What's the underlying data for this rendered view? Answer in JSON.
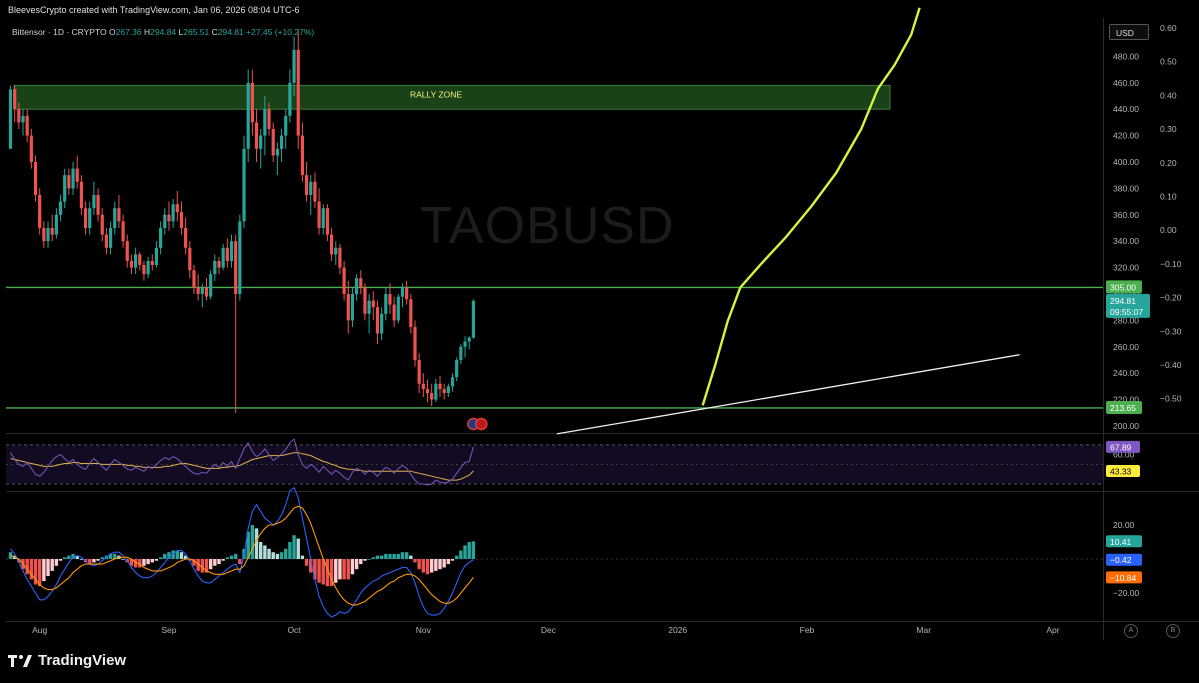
{
  "header": {
    "attribution": "BleevesCrypto created with TradingView.com, Jan 06, 2026 08:04 UTC-6"
  },
  "legend": {
    "symbol": "Bittensor · 1D · CRYPTO",
    "o_label": "O",
    "o_value": "267.36",
    "h_label": "H",
    "h_value": "294.84",
    "l_label": "L",
    "l_value": "265.51",
    "c_label": "C",
    "c_value": "294.81",
    "change": "+27.45 (+10.27%)"
  },
  "currency_button": "USD",
  "watermark": "TAOBUSD",
  "footer": {
    "brand": "TradingView"
  },
  "scale_buttons": {
    "auto": "A",
    "log": "B"
  },
  "colors": {
    "up": "#26a69a",
    "down": "#ef5350",
    "hline": "#4caf50",
    "rally_zone": "#1d4d1d",
    "curve": "#d4f53a",
    "rsi": "#7e57c2",
    "rsi_ma": "#e0b04d",
    "macd": "#2962ff",
    "signal": "#ff9800"
  },
  "chart_data": {
    "type": "candlestick",
    "symbol": "TAOBUSD",
    "interval": "1D",
    "ylim": [
      195,
      500
    ],
    "right_axis_ticks": [
      "480.00",
      "460.00",
      "440.00",
      "420.00",
      "400.00",
      "380.00",
      "360.00",
      "340.00",
      "320.00",
      "300.00",
      "280.00",
      "260.00",
      "240.00",
      "220.00",
      "200.00"
    ],
    "left_axis2_ticks": [
      "0.60",
      "0.50",
      "0.40",
      "0.30",
      "0.20",
      "0.10",
      "0.00",
      "−0.10",
      "−0.20",
      "−0.30",
      "−0.40",
      "−0.50"
    ],
    "x_ticks": [
      "Aug",
      "Sep",
      "Oct",
      "Nov",
      "Dec",
      "2026",
      "Feb",
      "Mar",
      "Apr"
    ],
    "price_labels": {
      "resistance": "305.00",
      "last": "294.81",
      "countdown": "09:55:07",
      "support": "213.65"
    },
    "horizontal_levels": [
      305.0,
      213.65
    ],
    "rally_zone": {
      "label": "RALLY ZONE",
      "low": 440,
      "high": 458
    },
    "trendline": {
      "from": [
        "2025-12-03",
        194
      ],
      "to": [
        "2026-03-24",
        254
      ]
    },
    "candles": {
      "start": "2025-07-25",
      "ohlc": [
        [
          410,
          458,
          410,
          455
        ],
        [
          455,
          458,
          430,
          440
        ],
        [
          440,
          445,
          425,
          430
        ],
        [
          430,
          440,
          420,
          435
        ],
        [
          435,
          440,
          415,
          420
        ],
        [
          420,
          425,
          395,
          400
        ],
        [
          400,
          405,
          370,
          375
        ],
        [
          375,
          380,
          345,
          350
        ],
        [
          350,
          355,
          335,
          340
        ],
        [
          340,
          355,
          335,
          350
        ],
        [
          350,
          360,
          340,
          345
        ],
        [
          345,
          365,
          342,
          360
        ],
        [
          360,
          375,
          355,
          370
        ],
        [
          370,
          395,
          365,
          390
        ],
        [
          390,
          395,
          375,
          380
        ],
        [
          380,
          400,
          375,
          395
        ],
        [
          395,
          405,
          380,
          385
        ],
        [
          385,
          390,
          360,
          365
        ],
        [
          365,
          370,
          345,
          350
        ],
        [
          350,
          370,
          345,
          365
        ],
        [
          365,
          385,
          360,
          375
        ],
        [
          375,
          380,
          355,
          360
        ],
        [
          360,
          365,
          340,
          345
        ],
        [
          345,
          350,
          330,
          335
        ],
        [
          335,
          355,
          330,
          350
        ],
        [
          350,
          370,
          345,
          365
        ],
        [
          365,
          375,
          350,
          355
        ],
        [
          355,
          360,
          335,
          340
        ],
        [
          340,
          345,
          320,
          325
        ],
        [
          325,
          330,
          315,
          320
        ],
        [
          320,
          335,
          315,
          330
        ],
        [
          330,
          332,
          318,
          322
        ],
        [
          322,
          325,
          310,
          315
        ],
        [
          315,
          328,
          312,
          325
        ],
        [
          325,
          330,
          318,
          322
        ],
        [
          322,
          340,
          320,
          335
        ],
        [
          335,
          355,
          330,
          350
        ],
        [
          350,
          365,
          345,
          360
        ],
        [
          360,
          370,
          348,
          355
        ],
        [
          355,
          372,
          350,
          368
        ],
        [
          368,
          378,
          355,
          362
        ],
        [
          362,
          370,
          345,
          350
        ],
        [
          350,
          358,
          330,
          335
        ],
        [
          335,
          340,
          312,
          318
        ],
        [
          318,
          322,
          300,
          305
        ],
        [
          305,
          315,
          295,
          300
        ],
        [
          300,
          308,
          290,
          305
        ],
        [
          305,
          312,
          295,
          298
        ],
        [
          298,
          318,
          296,
          315
        ],
        [
          315,
          330,
          310,
          325
        ],
        [
          325,
          328,
          315,
          320
        ],
        [
          320,
          338,
          318,
          335
        ],
        [
          335,
          342,
          320,
          325
        ],
        [
          325,
          345,
          320,
          340
        ],
        [
          340,
          345,
          210,
          300
        ],
        [
          300,
          360,
          295,
          355
        ],
        [
          355,
          420,
          350,
          410
        ],
        [
          410,
          470,
          400,
          460
        ],
        [
          460,
          470,
          420,
          430
        ],
        [
          430,
          440,
          400,
          410
        ],
        [
          410,
          425,
          395,
          420
        ],
        [
          420,
          450,
          405,
          440
        ],
        [
          440,
          445,
          420,
          425
        ],
        [
          425,
          430,
          400,
          405
        ],
        [
          405,
          415,
          390,
          410
        ],
        [
          410,
          425,
          400,
          420
        ],
        [
          420,
          440,
          410,
          435
        ],
        [
          435,
          470,
          430,
          460
        ],
        [
          460,
          495,
          450,
          485
        ],
        [
          485,
          500,
          410,
          420
        ],
        [
          420,
          430,
          385,
          390
        ],
        [
          390,
          400,
          370,
          375
        ],
        [
          375,
          390,
          360,
          385
        ],
        [
          385,
          392,
          365,
          370
        ],
        [
          370,
          380,
          345,
          350
        ],
        [
          350,
          368,
          345,
          365
        ],
        [
          365,
          368,
          340,
          345
        ],
        [
          345,
          350,
          325,
          330
        ],
        [
          330,
          340,
          322,
          335
        ],
        [
          335,
          338,
          315,
          320
        ],
        [
          320,
          325,
          295,
          300
        ],
        [
          300,
          310,
          270,
          280
        ],
        [
          280,
          305,
          275,
          300
        ],
        [
          300,
          315,
          295,
          312
        ],
        [
          312,
          318,
          300,
          305
        ],
        [
          305,
          308,
          280,
          285
        ],
        [
          285,
          300,
          270,
          295
        ],
        [
          295,
          302,
          280,
          290
        ],
        [
          290,
          295,
          262,
          270
        ],
        [
          270,
          290,
          265,
          285
        ],
        [
          285,
          305,
          280,
          300
        ],
        [
          300,
          308,
          285,
          292
        ],
        [
          292,
          298,
          275,
          280
        ],
        [
          280,
          300,
          278,
          298
        ],
        [
          298,
          308,
          290,
          305
        ],
        [
          305,
          310,
          292,
          296
        ],
        [
          296,
          300,
          270,
          275
        ],
        [
          275,
          280,
          245,
          250
        ],
        [
          250,
          255,
          225,
          232
        ],
        [
          232,
          240,
          222,
          228
        ],
        [
          228,
          235,
          218,
          225
        ],
        [
          225,
          232,
          215,
          220
        ],
        [
          220,
          236,
          218,
          232
        ],
        [
          232,
          238,
          222,
          228
        ],
        [
          228,
          232,
          220,
          225
        ],
        [
          225,
          232,
          222,
          230
        ],
        [
          230,
          240,
          226,
          237
        ],
        [
          237,
          252,
          234,
          250
        ],
        [
          250,
          262,
          247,
          260
        ],
        [
          260,
          268,
          252,
          264
        ],
        [
          264,
          268,
          258,
          267
        ],
        [
          267,
          296,
          266,
          294.81
        ]
      ]
    },
    "rsi": {
      "levels": [
        "60.00"
      ],
      "labels": {
        "rsi": "67.89",
        "ma": "43.33"
      },
      "values": [
        62,
        55,
        50,
        48,
        52,
        46,
        40,
        38,
        42,
        48,
        54,
        58,
        60,
        56,
        52,
        55,
        50,
        47,
        45,
        51,
        56,
        52,
        48,
        44,
        50,
        55,
        52,
        49,
        45,
        44,
        47,
        45,
        43,
        48,
        46,
        50,
        54,
        57,
        55,
        58,
        56,
        52,
        48,
        44,
        41,
        40,
        42,
        41,
        46,
        50,
        47,
        52,
        48,
        53,
        46,
        56,
        66,
        72,
        63,
        58,
        61,
        66,
        60,
        54,
        57,
        61,
        65,
        72,
        76,
        60,
        50,
        46,
        50,
        47,
        42,
        48,
        44,
        40,
        44,
        41,
        37,
        34,
        42,
        46,
        44,
        40,
        44,
        42,
        38,
        43,
        47,
        45,
        41,
        46,
        49,
        46,
        40,
        34,
        30,
        30,
        29,
        30,
        34,
        32,
        31,
        32,
        35,
        41,
        47,
        52,
        53,
        67.89
      ],
      "ma_values": [
        56,
        55,
        54,
        53,
        52,
        51,
        50,
        49,
        48,
        48,
        48,
        49,
        50,
        51,
        51,
        52,
        52,
        51,
        51,
        51,
        51,
        51,
        50,
        50,
        50,
        50,
        50,
        50,
        49,
        49,
        48,
        48,
        47,
        47,
        47,
        47,
        47,
        48,
        48,
        49,
        50,
        51,
        51,
        50,
        49,
        48,
        47,
        46,
        46,
        46,
        46,
        47,
        47,
        48,
        48,
        49,
        51,
        53,
        55,
        56,
        57,
        58,
        59,
        59,
        59,
        59,
        60,
        61,
        62,
        62,
        61,
        60,
        59,
        57,
        55,
        53,
        52,
        50,
        49,
        47,
        46,
        45,
        45,
        44,
        44,
        43,
        43,
        43,
        43,
        43,
        43,
        43,
        43,
        43,
        43,
        43,
        43,
        42,
        41,
        40,
        39,
        38,
        37,
        36,
        35,
        34,
        34,
        34,
        35,
        37,
        39,
        43.33
      ]
    },
    "macd": {
      "levels": [
        "20.00",
        "−20.00"
      ],
      "labels": {
        "hist": "10.41",
        "macd": "−0.42",
        "signal": "−10.84"
      },
      "hist": [
        4,
        2,
        -2,
        -6,
        -9,
        -12,
        -15,
        -16,
        -13,
        -10,
        -7,
        -4,
        -1,
        1,
        2,
        3,
        2,
        0,
        -2,
        -3,
        -2,
        -1,
        1,
        2,
        3,
        3,
        2,
        0,
        -2,
        -4,
        -5,
        -5,
        -4,
        -3,
        -2,
        -1,
        1,
        3,
        4,
        5,
        5,
        4,
        2,
        -1,
        -4,
        -7,
        -8,
        -8,
        -6,
        -4,
        -3,
        -1,
        1,
        2,
        3,
        -3,
        6,
        16,
        20,
        18,
        10,
        8,
        6,
        4,
        3,
        4,
        6,
        10,
        14,
        12,
        2,
        -4,
        -8,
        -12,
        -14,
        -15,
        -16,
        -16,
        -14,
        -12,
        -12,
        -12,
        -9,
        -6,
        -3,
        -1,
        0,
        1,
        2,
        2,
        3,
        3,
        3,
        3,
        4,
        4,
        2,
        -2,
        -6,
        -8,
        -9,
        -8,
        -7,
        -6,
        -5,
        -3,
        -1,
        2,
        5,
        8,
        10,
        10.41
      ],
      "macd": [
        6,
        3,
        -2,
        -7,
        -12,
        -16,
        -20,
        -24,
        -24,
        -22,
        -19,
        -15,
        -10,
        -6,
        -2,
        1,
        2,
        1,
        -1,
        -3,
        -4,
        -3,
        -1,
        1,
        3,
        4,
        4,
        2,
        -1,
        -5,
        -8,
        -10,
        -11,
        -11,
        -10,
        -8,
        -5,
        -2,
        1,
        3,
        5,
        5,
        3,
        -1,
        -6,
        -10,
        -13,
        -14,
        -14,
        -12,
        -10,
        -8,
        -6,
        -4,
        -3,
        -8,
        2,
        18,
        28,
        32,
        28,
        24,
        22,
        20,
        22,
        26,
        32,
        40,
        42,
        36,
        24,
        12,
        0,
        -12,
        -22,
        -28,
        -32,
        -34,
        -33,
        -31,
        -32,
        -31,
        -28,
        -24,
        -20,
        -17,
        -15,
        -13,
        -12,
        -10,
        -9,
        -8,
        -7,
        -6,
        -5,
        -5,
        -8,
        -14,
        -22,
        -28,
        -32,
        -33,
        -33,
        -32,
        -29,
        -25,
        -20,
        -14,
        -8,
        -4,
        -2,
        -0.42
      ],
      "signal": [
        2,
        1,
        0,
        -3,
        -6,
        -9,
        -12,
        -15,
        -17,
        -18,
        -18,
        -17,
        -15,
        -13,
        -11,
        -8,
        -6,
        -4,
        -3,
        -3,
        -3,
        -3,
        -3,
        -2,
        -1,
        0,
        1,
        1,
        1,
        0,
        -2,
        -3,
        -5,
        -6,
        -7,
        -7,
        -7,
        -6,
        -5,
        -4,
        -2,
        -1,
        0,
        0,
        -1,
        -3,
        -5,
        -7,
        -8,
        -9,
        -9,
        -9,
        -8,
        -7,
        -6,
        -6,
        -4,
        1,
        6,
        11,
        15,
        18,
        20,
        20,
        21,
        22,
        24,
        27,
        30,
        31,
        30,
        26,
        21,
        14,
        7,
        0,
        -6,
        -12,
        -17,
        -21,
        -24,
        -26,
        -27,
        -27,
        -26,
        -25,
        -23,
        -21,
        -19,
        -18,
        -16,
        -14,
        -13,
        -11,
        -10,
        -9,
        -9,
        -10,
        -12,
        -15,
        -18,
        -21,
        -23,
        -25,
        -26,
        -26,
        -25,
        -23,
        -20,
        -17,
        -14,
        -10.84
      ]
    }
  }
}
